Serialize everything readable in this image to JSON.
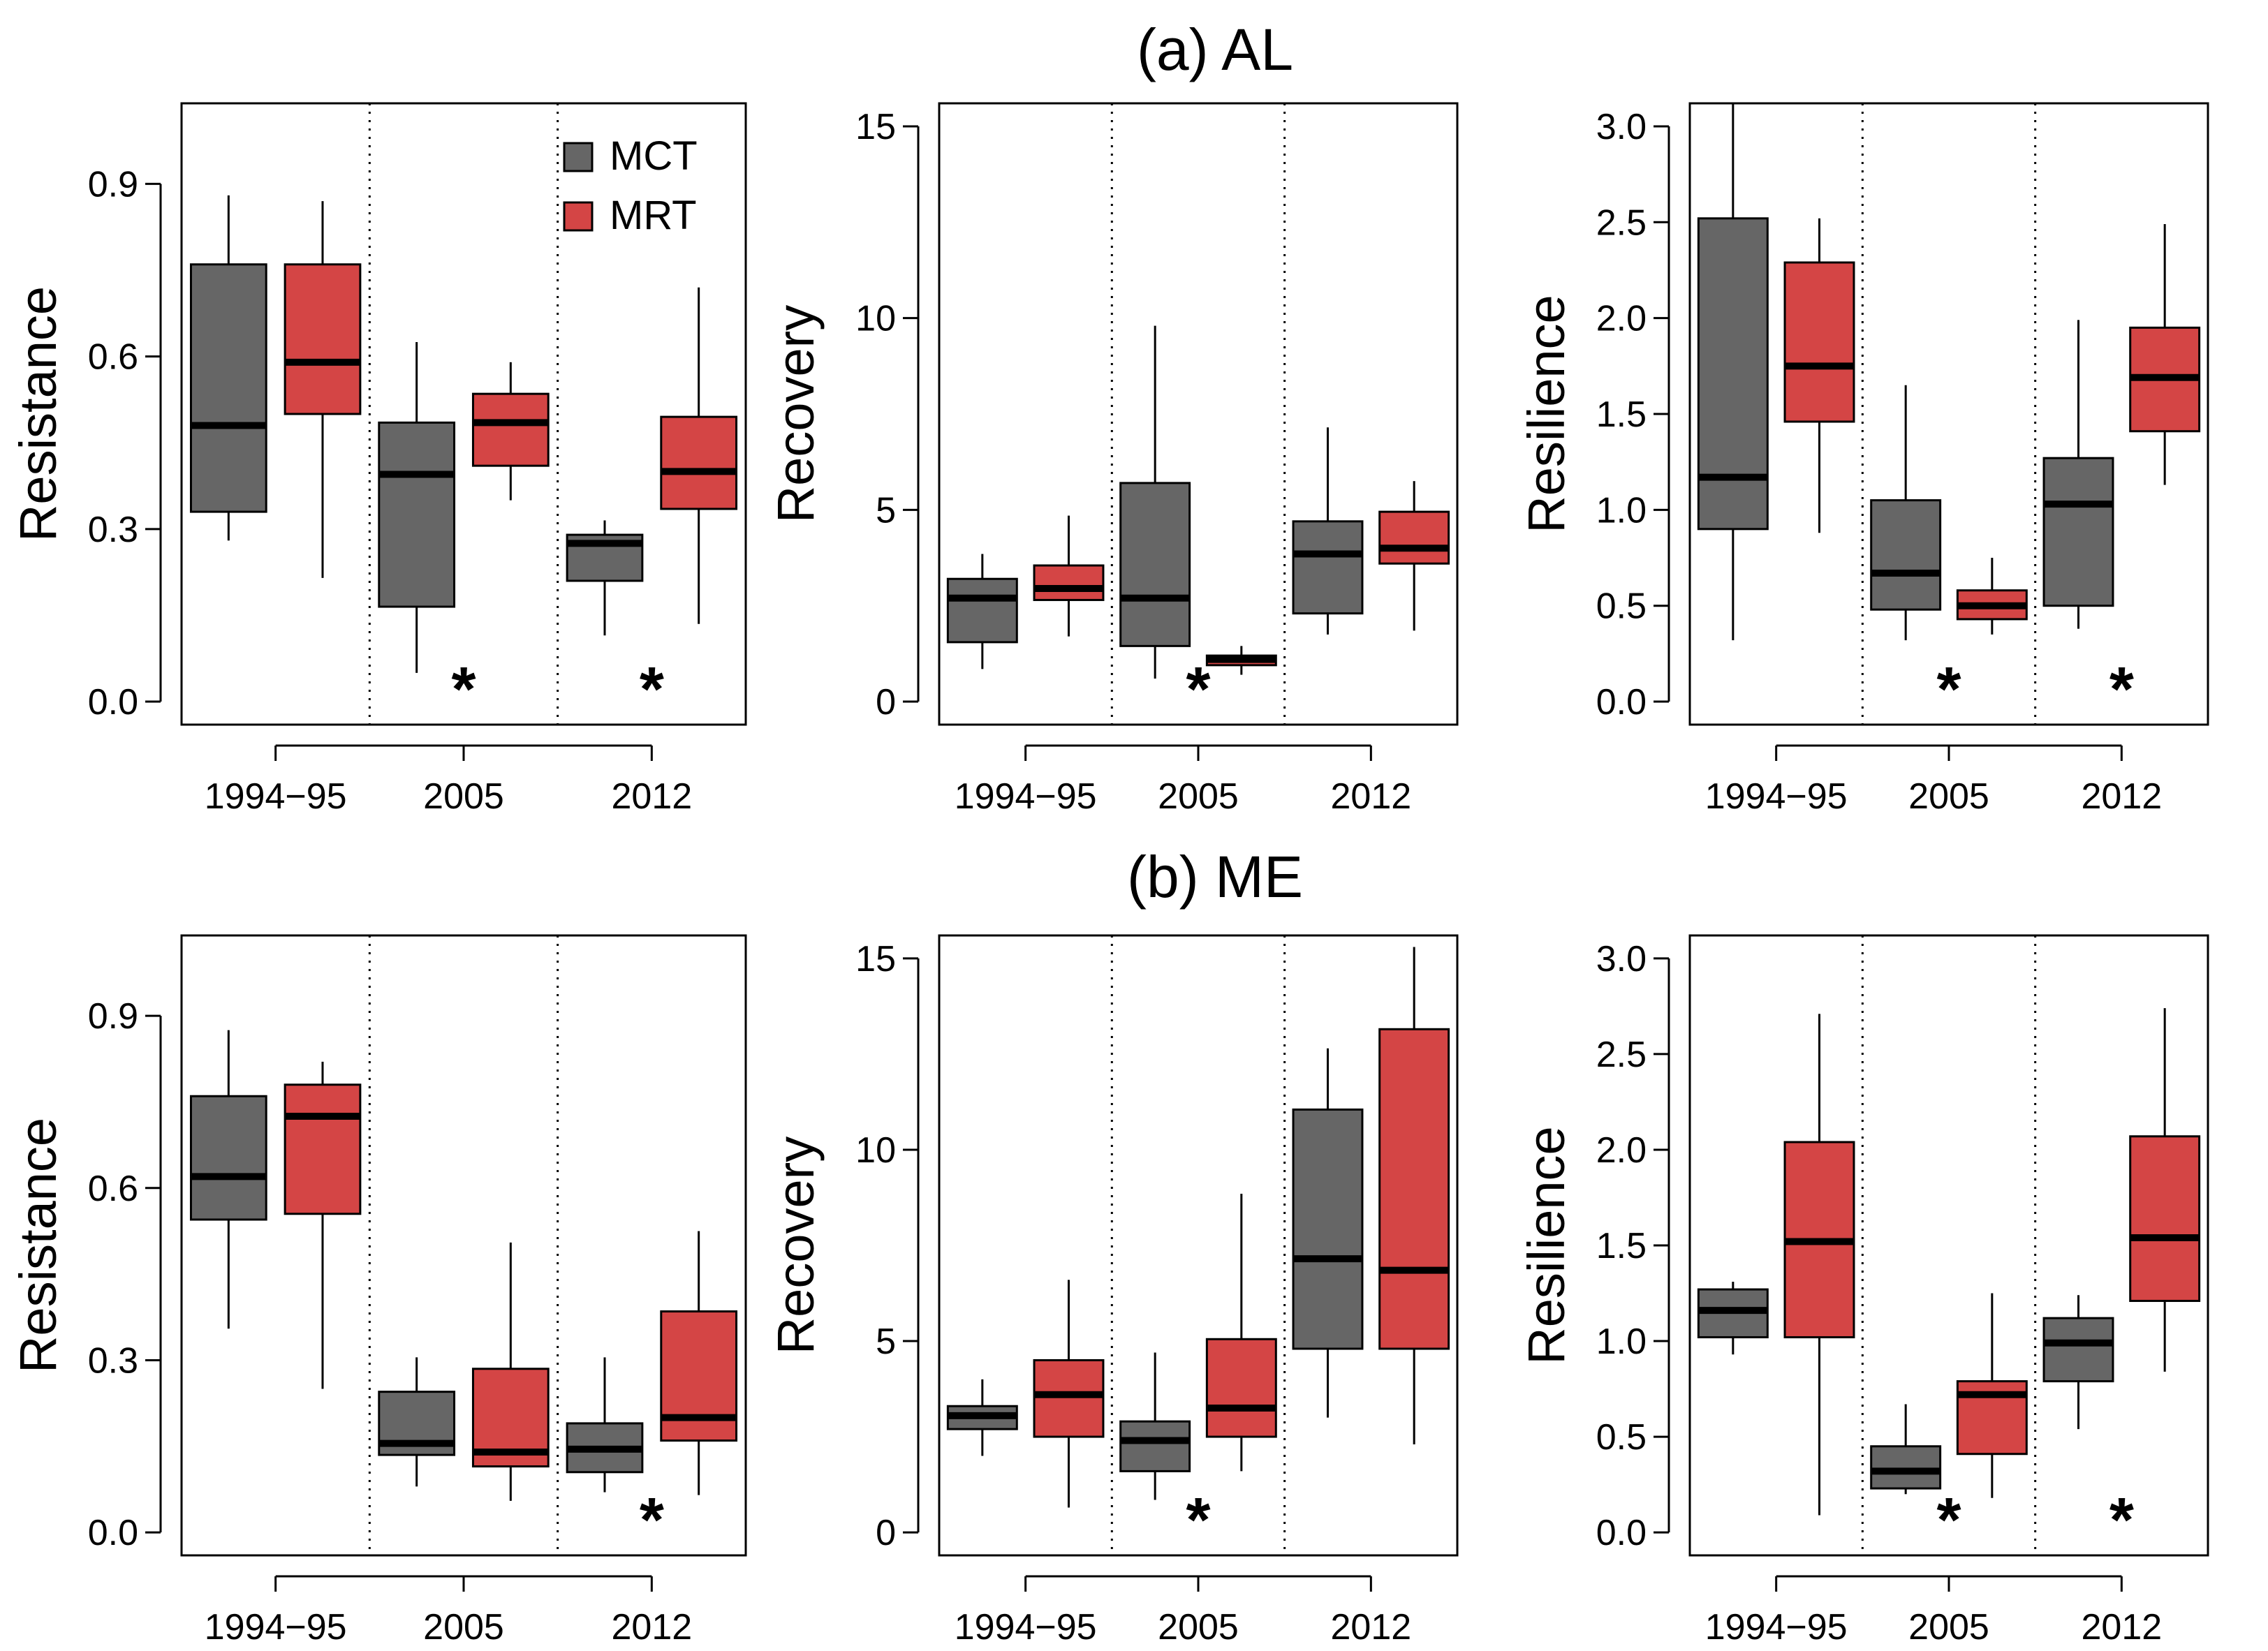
{
  "colors": {
    "MCT": "#666666",
    "MRT": "#d44545",
    "median": "#000000",
    "axis": "#000000"
  },
  "legend": {
    "items": [
      {
        "label": "MCT",
        "color": "#666666"
      },
      {
        "label": "MRT",
        "color": "#d44545"
      }
    ]
  },
  "rows": [
    {
      "title": "(a) AL"
    },
    {
      "title": "(b) ME"
    }
  ],
  "chart_data": [
    {
      "type": "boxplot",
      "row": 0,
      "col": 0,
      "ylabel": "Resistance",
      "ylim": [
        -0.04,
        1.04
      ],
      "yticks": [
        0.0,
        0.3,
        0.6,
        0.9
      ],
      "ytick_labels": [
        "0.0",
        "0.3",
        "0.6",
        "0.9"
      ],
      "categories": [
        "1994−95",
        "2005",
        "2012"
      ],
      "series": [
        {
          "name": "MCT",
          "boxes": [
            {
              "min": 0.28,
              "q1": 0.33,
              "median": 0.48,
              "q3": 0.76,
              "max": 0.88
            },
            {
              "min": 0.05,
              "q1": 0.165,
              "median": 0.395,
              "q3": 0.485,
              "max": 0.625
            },
            {
              "min": 0.115,
              "q1": 0.21,
              "median": 0.275,
              "q3": 0.29,
              "max": 0.315
            }
          ]
        },
        {
          "name": "MRT",
          "boxes": [
            {
              "min": 0.215,
              "q1": 0.5,
              "median": 0.59,
              "q3": 0.76,
              "max": 0.87
            },
            {
              "min": 0.35,
              "q1": 0.41,
              "median": 0.485,
              "q3": 0.535,
              "max": 0.59
            },
            {
              "min": 0.135,
              "q1": 0.335,
              "median": 0.4,
              "q3": 0.495,
              "max": 0.72
            }
          ]
        }
      ],
      "significance": [
        {
          "category": "2005",
          "label": "*"
        },
        {
          "category": "2012",
          "label": "*"
        }
      ],
      "legend_shown": true
    },
    {
      "type": "boxplot",
      "row": 0,
      "col": 1,
      "ylabel": "Recovery",
      "ylim": [
        -0.6,
        15.6
      ],
      "yticks": [
        0,
        5,
        10,
        15
      ],
      "ytick_labels": [
        "0",
        "5",
        "10",
        "15"
      ],
      "categories": [
        "1994−95",
        "2005",
        "2012"
      ],
      "series": [
        {
          "name": "MCT",
          "boxes": [
            {
              "min": 0.85,
              "q1": 1.55,
              "median": 2.7,
              "q3": 3.2,
              "max": 3.85
            },
            {
              "min": 0.6,
              "q1": 1.45,
              "median": 2.7,
              "q3": 5.7,
              "max": 9.8
            },
            {
              "min": 1.75,
              "q1": 2.3,
              "median": 3.85,
              "q3": 4.7,
              "max": 7.15
            }
          ]
        },
        {
          "name": "MRT",
          "boxes": [
            {
              "min": 1.7,
              "q1": 2.65,
              "median": 2.95,
              "q3": 3.55,
              "max": 4.85
            },
            {
              "min": 0.7,
              "q1": 0.95,
              "median": 1.1,
              "q3": 1.2,
              "max": 1.45
            },
            {
              "min": 1.85,
              "q1": 3.6,
              "median": 4.0,
              "q3": 4.95,
              "max": 5.75
            }
          ]
        }
      ],
      "significance": [
        {
          "category": "2005",
          "label": "*"
        }
      ],
      "legend_shown": false
    },
    {
      "type": "boxplot",
      "row": 0,
      "col": 2,
      "ylabel": "Resilience",
      "ylim": [
        -0.12,
        3.12
      ],
      "yticks": [
        0.0,
        0.5,
        1.0,
        1.5,
        2.0,
        2.5,
        3.0
      ],
      "ytick_labels": [
        "0.0",
        "0.5",
        "1.0",
        "1.5",
        "2.0",
        "2.5",
        "3.0"
      ],
      "categories": [
        "1994−95",
        "2005",
        "2012"
      ],
      "series": [
        {
          "name": "MCT",
          "boxes": [
            {
              "min": 0.32,
              "q1": 0.9,
              "median": 1.17,
              "q3": 2.52,
              "max": 3.12
            },
            {
              "min": 0.32,
              "q1": 0.48,
              "median": 0.67,
              "q3": 1.05,
              "max": 1.65
            },
            {
              "min": 0.38,
              "q1": 0.5,
              "median": 1.03,
              "q3": 1.27,
              "max": 1.99
            }
          ]
        },
        {
          "name": "MRT",
          "boxes": [
            {
              "min": 0.88,
              "q1": 1.46,
              "median": 1.75,
              "q3": 2.29,
              "max": 2.52
            },
            {
              "min": 0.35,
              "q1": 0.43,
              "median": 0.5,
              "q3": 0.58,
              "max": 0.75
            },
            {
              "min": 1.13,
              "q1": 1.41,
              "median": 1.69,
              "q3": 1.95,
              "max": 2.49
            }
          ]
        }
      ],
      "significance": [
        {
          "category": "2005",
          "label": "*"
        },
        {
          "category": "2012",
          "label": "*"
        }
      ],
      "legend_shown": false
    },
    {
      "type": "boxplot",
      "row": 1,
      "col": 0,
      "ylabel": "Resistance",
      "ylim": [
        -0.04,
        1.04
      ],
      "yticks": [
        0.0,
        0.3,
        0.6,
        0.9
      ],
      "ytick_labels": [
        "0.0",
        "0.3",
        "0.6",
        "0.9"
      ],
      "categories": [
        "1994−95",
        "2005",
        "2012"
      ],
      "series": [
        {
          "name": "MCT",
          "boxes": [
            {
              "min": 0.355,
              "q1": 0.545,
              "median": 0.62,
              "q3": 0.76,
              "max": 0.875
            },
            {
              "min": 0.08,
              "q1": 0.135,
              "median": 0.155,
              "q3": 0.245,
              "max": 0.305
            },
            {
              "min": 0.07,
              "q1": 0.105,
              "median": 0.145,
              "q3": 0.19,
              "max": 0.305
            }
          ]
        },
        {
          "name": "MRT",
          "boxes": [
            {
              "min": 0.25,
              "q1": 0.555,
              "median": 0.725,
              "q3": 0.78,
              "max": 0.82
            },
            {
              "min": 0.055,
              "q1": 0.115,
              "median": 0.14,
              "q3": 0.285,
              "max": 0.505
            },
            {
              "min": 0.065,
              "q1": 0.16,
              "median": 0.2,
              "q3": 0.385,
              "max": 0.525
            }
          ]
        }
      ],
      "significance": [
        {
          "category": "2012",
          "label": "*"
        }
      ],
      "legend_shown": false
    },
    {
      "type": "boxplot",
      "row": 1,
      "col": 1,
      "ylabel": "Recovery",
      "ylim": [
        -0.6,
        15.6
      ],
      "yticks": [
        0,
        5,
        10,
        15
      ],
      "ytick_labels": [
        "0",
        "5",
        "10",
        "15"
      ],
      "categories": [
        "1994−95",
        "2005",
        "2012"
      ],
      "series": [
        {
          "name": "MCT",
          "boxes": [
            {
              "min": 2.0,
              "q1": 2.7,
              "median": 3.05,
              "q3": 3.3,
              "max": 4.0
            },
            {
              "min": 0.85,
              "q1": 1.6,
              "median": 2.4,
              "q3": 2.9,
              "max": 4.7
            },
            {
              "min": 3.0,
              "q1": 4.8,
              "median": 7.15,
              "q3": 11.05,
              "max": 12.65
            }
          ]
        },
        {
          "name": "MRT",
          "boxes": [
            {
              "min": 0.65,
              "q1": 2.5,
              "median": 3.6,
              "q3": 4.5,
              "max": 6.6
            },
            {
              "min": 1.6,
              "q1": 2.5,
              "median": 3.25,
              "q3": 5.05,
              "max": 8.85
            },
            {
              "min": 2.3,
              "q1": 4.8,
              "median": 6.85,
              "q3": 13.15,
              "max": 15.3
            }
          ]
        }
      ],
      "significance": [
        {
          "category": "2005",
          "label": "*"
        }
      ],
      "legend_shown": false
    },
    {
      "type": "boxplot",
      "row": 1,
      "col": 2,
      "ylabel": "Resilience",
      "ylim": [
        -0.12,
        3.12
      ],
      "yticks": [
        0.0,
        0.5,
        1.0,
        1.5,
        2.0,
        2.5,
        3.0
      ],
      "ytick_labels": [
        "0.0",
        "0.5",
        "1.0",
        "1.5",
        "2.0",
        "2.5",
        "3.0"
      ],
      "categories": [
        "1994−95",
        "2005",
        "2012"
      ],
      "series": [
        {
          "name": "MCT",
          "boxes": [
            {
              "min": 0.93,
              "q1": 1.02,
              "median": 1.16,
              "q3": 1.27,
              "max": 1.31
            },
            {
              "min": 0.2,
              "q1": 0.23,
              "median": 0.32,
              "q3": 0.45,
              "max": 0.67
            },
            {
              "min": 0.54,
              "q1": 0.79,
              "median": 0.99,
              "q3": 1.12,
              "max": 1.24
            }
          ]
        },
        {
          "name": "MRT",
          "boxes": [
            {
              "min": 0.09,
              "q1": 1.02,
              "median": 1.52,
              "q3": 2.04,
              "max": 2.71
            },
            {
              "min": 0.18,
              "q1": 0.41,
              "median": 0.72,
              "q3": 0.79,
              "max": 1.25
            },
            {
              "min": 0.84,
              "q1": 1.21,
              "median": 1.54,
              "q3": 2.07,
              "max": 2.74
            }
          ]
        }
      ],
      "significance": [
        {
          "category": "2005",
          "label": "*"
        },
        {
          "category": "2012",
          "label": "*"
        }
      ],
      "legend_shown": false
    }
  ]
}
